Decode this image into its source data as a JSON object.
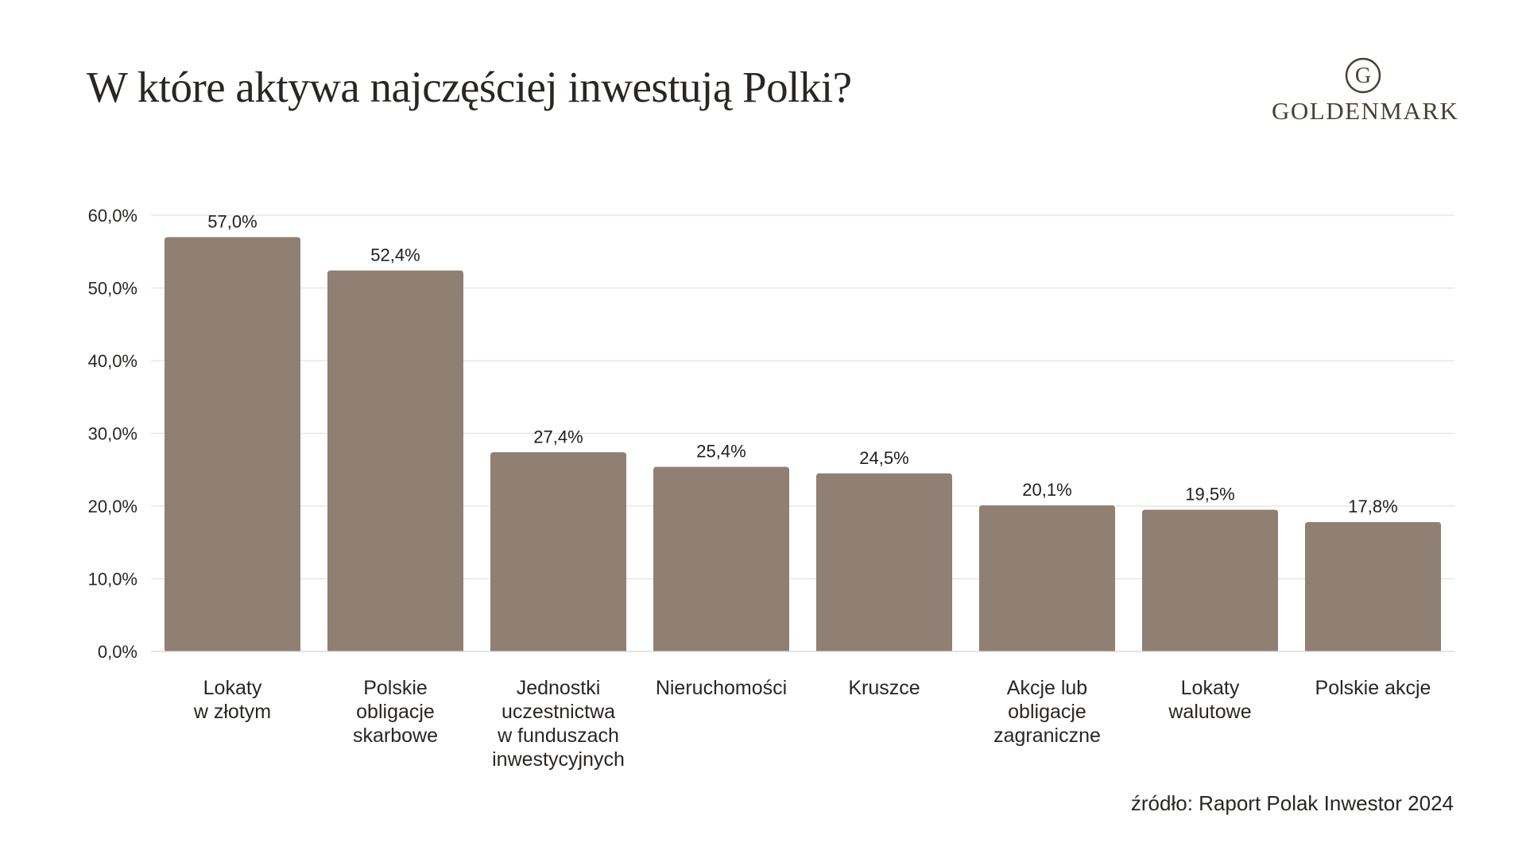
{
  "header": {
    "title": "W które aktywa najczęściej inwestują Polki?"
  },
  "brand": {
    "name": "GOLDENMARK",
    "logo_letter": "G",
    "color": "#4a3f36"
  },
  "footer": {
    "source": "źródło: Raport Polak Inwestor 2024"
  },
  "chart_data": {
    "type": "bar",
    "title": "W które aktywa najczęściej inwestują Polki?",
    "xlabel": "",
    "ylabel": "",
    "ylim": [
      0,
      60
    ],
    "y_ticks": [
      0,
      10,
      20,
      30,
      40,
      50,
      60
    ],
    "y_tick_labels": [
      "0,0%",
      "10,0%",
      "20,0%",
      "30,0%",
      "40,0%",
      "50,0%",
      "60,0%"
    ],
    "grid": true,
    "legend": "none",
    "bar_color": "#907f73",
    "grid_color": "#e2e2e2",
    "categories": [
      [
        "Lokaty",
        "w złotym"
      ],
      [
        "Polskie",
        "obligacje",
        "skarbowe"
      ],
      [
        "Jednostki",
        "uczestnictwa",
        "w funduszach",
        "inwestycyjnych"
      ],
      [
        "Nieruchomości"
      ],
      [
        "Kruszce"
      ],
      [
        "Akcje lub",
        "obligacje",
        "zagraniczne"
      ],
      [
        "Lokaty",
        "walutowe"
      ],
      [
        "Polskie akcje"
      ]
    ],
    "values": [
      57.0,
      52.4,
      27.4,
      25.4,
      24.5,
      20.1,
      19.5,
      17.8
    ],
    "value_labels": [
      "57,0%",
      "52,4%",
      "27,4%",
      "25,4%",
      "24,5%",
      "20,1%",
      "19,5%",
      "17,8%"
    ]
  }
}
